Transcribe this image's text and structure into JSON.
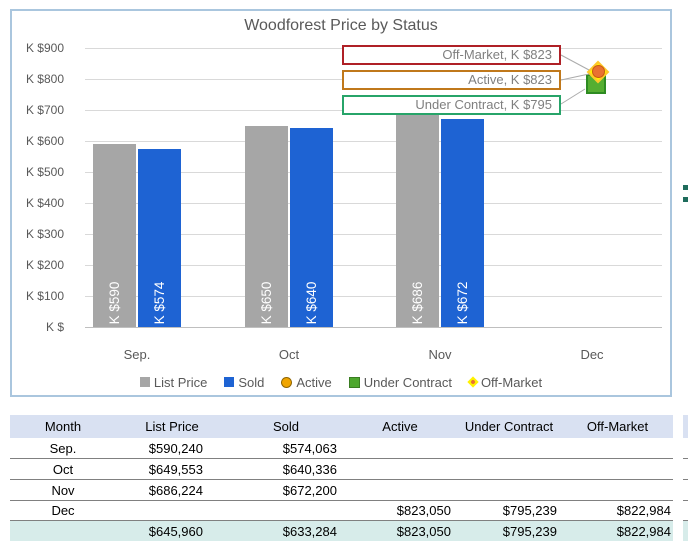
{
  "chart": {
    "title": "Woodforest Price by Status",
    "y_axis": {
      "labels": [
        "K $900",
        "K $800",
        "K $700",
        "K $600",
        "K $500",
        "K $400",
        "K $300",
        "K $200",
        "K $100",
        "K $"
      ]
    },
    "x_axis": {
      "labels": [
        "Sep.",
        "Oct",
        "Nov",
        "Dec"
      ]
    },
    "legend": [
      {
        "label": "List Price",
        "marker": "square",
        "color": "#A6A6A6"
      },
      {
        "label": "Sold",
        "marker": "square",
        "color": "#1E63D3"
      },
      {
        "label": "Active",
        "marker": "circle",
        "color": "#F0A500"
      },
      {
        "label": "Under Contract",
        "marker": "square",
        "color": "#4EA72E"
      },
      {
        "label": "Off-Market",
        "marker": "diamond",
        "color": "#FFF200"
      }
    ],
    "callouts": [
      {
        "text": "Off-Market, K $823",
        "border": "#AF2026"
      },
      {
        "text": "Active, K $823",
        "border": "#C0781B"
      },
      {
        "text": "Under Contract, K $795",
        "border": "#27A469"
      }
    ],
    "border_color": "#AAC6DE"
  },
  "chart_data": {
    "type": "bar",
    "title": "Woodforest Price by Status",
    "categories": [
      "Sep.",
      "Oct",
      "Nov",
      "Dec"
    ],
    "series": [
      {
        "name": "List Price",
        "type": "bar",
        "color": "#A6A6A6",
        "values": [
          590.24,
          649.553,
          686.224,
          null
        ],
        "labels": [
          "K $590",
          "K $650",
          "K $686",
          null
        ]
      },
      {
        "name": "Sold",
        "type": "bar",
        "color": "#1E63D3",
        "values": [
          574.063,
          640.336,
          672.2,
          null
        ],
        "labels": [
          "K $574",
          "K $640",
          "K $672",
          null
        ]
      },
      {
        "name": "Active",
        "type": "scatter",
        "marker": "circle",
        "color": "#E97132",
        "values": [
          null,
          null,
          null,
          823.05
        ]
      },
      {
        "name": "Under Contract",
        "type": "scatter",
        "marker": "square",
        "color": "#55AE31",
        "values": [
          null,
          null,
          null,
          795.239
        ]
      },
      {
        "name": "Off-Market",
        "type": "scatter",
        "marker": "diamond",
        "color": "#FFF200",
        "values": [
          null,
          null,
          null,
          822.984
        ]
      }
    ],
    "ylabel": "K $",
    "ylim": [
      0,
      900
    ],
    "y_tick_step": 100,
    "grid": true,
    "legend_position": "bottom"
  },
  "table": {
    "headers": [
      "Month",
      "List Price",
      "Sold",
      "Active",
      "Under Contract",
      "Off-Market"
    ],
    "rows": [
      {
        "month": "Sep.",
        "list_price": "$590,240",
        "sold": "$574,063",
        "active": "",
        "under_contract": "",
        "off_market": ""
      },
      {
        "month": "Oct",
        "list_price": "$649,553",
        "sold": "$640,336",
        "active": "",
        "under_contract": "",
        "off_market": ""
      },
      {
        "month": "Nov",
        "list_price": "$686,224",
        "sold": "$672,200",
        "active": "",
        "under_contract": "",
        "off_market": ""
      },
      {
        "month": "Dec",
        "list_price": "",
        "sold": "",
        "active": "$823,050",
        "under_contract": "$795,239",
        "off_market": "$822,984"
      }
    ],
    "total_row": {
      "month": "",
      "list_price": "$645,960",
      "sold": "$633,284",
      "active": "$823,050",
      "under_contract": "$795,239",
      "off_market": "$822,984"
    },
    "header_bg": "#D9E1F2",
    "total_bg": "#D7ECEA"
  }
}
